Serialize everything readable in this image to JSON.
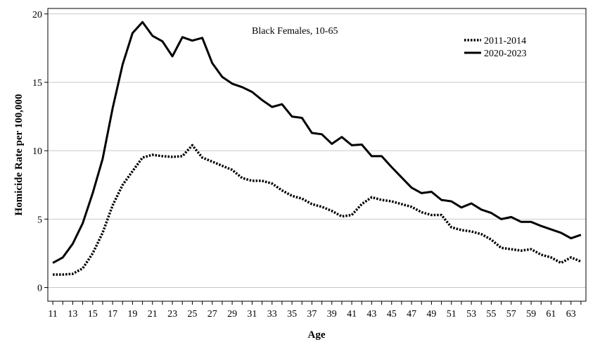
{
  "chart_data": {
    "type": "line",
    "title": "Black Females, 10-65",
    "xlabel": "Age",
    "ylabel": "Homicide Rate per 100,000",
    "xlim": [
      10.5,
      64.5
    ],
    "ylim": [
      -1,
      20.4
    ],
    "x_tick_labels": [
      "11",
      "13",
      "15",
      "17",
      "19",
      "21",
      "23",
      "25",
      "27",
      "29",
      "31",
      "33",
      "35",
      "37",
      "39",
      "41",
      "43",
      "45",
      "47",
      "49",
      "51",
      "53",
      "55",
      "57",
      "59",
      "61",
      "63"
    ],
    "y_tick_labels": [
      "0",
      "5",
      "10",
      "15",
      "20"
    ],
    "y_ticks": [
      0,
      5,
      10,
      15,
      20
    ],
    "grid": "horizontal",
    "legend_position": "top-right",
    "x": [
      11,
      12,
      13,
      14,
      15,
      16,
      17,
      18,
      19,
      20,
      21,
      22,
      23,
      24,
      25,
      26,
      27,
      28,
      29,
      30,
      31,
      32,
      33,
      34,
      35,
      36,
      37,
      38,
      39,
      40,
      41,
      42,
      43,
      44,
      45,
      46,
      47,
      48,
      49,
      50,
      51,
      52,
      53,
      54,
      55,
      56,
      57,
      58,
      59,
      60,
      61,
      62,
      63,
      64
    ],
    "series": [
      {
        "name": "2011-2014",
        "line_style": "dotted",
        "values": [
          0.95,
          0.95,
          1.0,
          1.4,
          2.5,
          4.0,
          6.0,
          7.5,
          8.5,
          9.5,
          9.7,
          9.6,
          9.55,
          9.6,
          10.4,
          9.5,
          9.2,
          8.9,
          8.6,
          8.0,
          7.8,
          7.8,
          7.6,
          7.1,
          6.7,
          6.5,
          6.1,
          5.9,
          5.6,
          5.2,
          5.3,
          6.1,
          6.6,
          6.4,
          6.3,
          6.1,
          5.9,
          5.5,
          5.3,
          5.3,
          4.4,
          4.2,
          4.1,
          3.9,
          3.5,
          2.9,
          2.8,
          2.7,
          2.8,
          2.4,
          2.2,
          1.8,
          2.2,
          1.9
        ]
      },
      {
        "name": "2020-2023",
        "line_style": "solid",
        "values": [
          1.8,
          2.2,
          3.2,
          4.7,
          6.9,
          9.4,
          13.1,
          16.3,
          18.6,
          19.4,
          18.4,
          18.0,
          16.9,
          18.3,
          18.05,
          18.25,
          16.4,
          15.4,
          14.9,
          14.65,
          14.3,
          13.7,
          13.2,
          13.4,
          12.5,
          12.4,
          11.3,
          11.2,
          10.5,
          11.0,
          10.4,
          10.45,
          9.6,
          9.6,
          8.8,
          8.05,
          7.3,
          6.9,
          7.0,
          6.4,
          6.3,
          5.85,
          6.15,
          5.7,
          5.45,
          5.0,
          5.15,
          4.8,
          4.8,
          4.5,
          4.25,
          4.0,
          3.6,
          3.85
        ]
      }
    ]
  }
}
